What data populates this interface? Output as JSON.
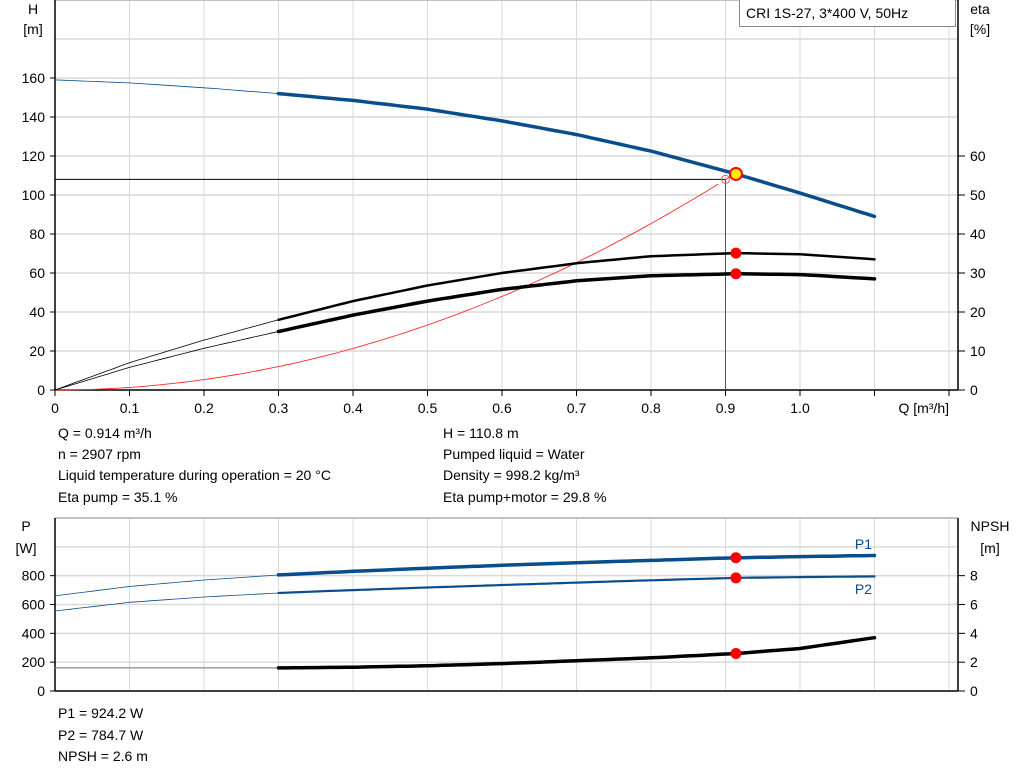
{
  "chart_data": [
    {
      "type": "line",
      "title": "CRI 1S-27, 3*400 V, 50Hz",
      "xlabel": "Q [m³/h]",
      "ylabel_top": "H",
      "ylabel_unit": "[m]",
      "y2label_top": "eta",
      "y2label_unit": "[%]",
      "xlim": [
        0,
        1.2
      ],
      "ylim": [
        0,
        200
      ],
      "y2lim": [
        0,
        100
      ],
      "grid": true,
      "xticks": [
        "0",
        "0.1",
        "0.2",
        "0.3",
        "0.4",
        "0.5",
        "0.6",
        "0.7",
        "0.8",
        "0.9",
        "1.0"
      ],
      "yticks": [
        "0",
        "20",
        "40",
        "60",
        "80",
        "100",
        "120",
        "140",
        "160"
      ],
      "y2ticks": [
        "0",
        "10",
        "20",
        "30",
        "40",
        "50",
        "60"
      ],
      "series": [
        {
          "key": "H",
          "axis": "y",
          "color": "#0a4d8c",
          "x": [
            0,
            0.1,
            0.2,
            0.3,
            0.4,
            0.5,
            0.6,
            0.7,
            0.8,
            0.914,
            1.0,
            1.1
          ],
          "y": [
            159,
            157.5,
            155,
            152,
            148.5,
            144,
            138,
            131,
            122.5,
            110.8,
            101,
            89
          ]
        },
        {
          "key": "eta_pump",
          "axis": "y2",
          "color": "#000000",
          "x": [
            0,
            0.1,
            0.2,
            0.3,
            0.4,
            0.5,
            0.6,
            0.7,
            0.8,
            0.914,
            1.0,
            1.1
          ],
          "y": [
            0,
            7,
            12.8,
            18,
            22.8,
            26.8,
            30,
            32.5,
            34.3,
            35.1,
            34.8,
            33.5
          ]
        },
        {
          "key": "eta_pump_motor",
          "axis": "y2",
          "color": "#000000",
          "x": [
            0,
            0.1,
            0.2,
            0.3,
            0.4,
            0.5,
            0.6,
            0.7,
            0.8,
            0.914,
            1.0,
            1.1
          ],
          "y": [
            0,
            5.8,
            10.7,
            15,
            19.2,
            22.8,
            25.8,
            28,
            29.3,
            29.8,
            29.6,
            28.5
          ]
        },
        {
          "key": "system_curve",
          "axis": "y",
          "color": "#ff2a2a",
          "x": [
            0,
            0.1,
            0.2,
            0.3,
            0.4,
            0.5,
            0.6,
            0.7,
            0.8,
            0.9,
            0.914
          ],
          "y": [
            0,
            1,
            5,
            12,
            21,
            32,
            47,
            64,
            85,
            108,
            110.8
          ]
        }
      ],
      "duty_point": {
        "q": 0.914,
        "h": 110.8,
        "eta_pump": 35.1,
        "eta_pump_motor": 29.8
      },
      "crosshair": {
        "q": 0.9,
        "h": 108
      }
    },
    {
      "type": "line",
      "ylabel_top": "P",
      "ylabel_unit": "[W]",
      "y2label_top": "NPSH",
      "y2label_unit": "[m]",
      "xlim": [
        0,
        1.2
      ],
      "ylim": [
        0,
        1200
      ],
      "y2lim": [
        0,
        12
      ],
      "grid": true,
      "yticks": [
        "0",
        "200",
        "400",
        "600",
        "800"
      ],
      "y2ticks": [
        "0",
        "2",
        "4",
        "6",
        "8"
      ],
      "series": [
        {
          "key": "P1",
          "name": "P1",
          "axis": "y",
          "color": "#0a4d8c",
          "x": [
            0,
            0.1,
            0.2,
            0.3,
            0.4,
            0.5,
            0.6,
            0.7,
            0.8,
            0.914,
            1.0,
            1.1
          ],
          "y": [
            660,
            725,
            770,
            805,
            830,
            852,
            872,
            890,
            906,
            924.2,
            932,
            940
          ]
        },
        {
          "key": "P2",
          "name": "P2",
          "axis": "y",
          "color": "#0a4d8c",
          "x": [
            0,
            0.1,
            0.2,
            0.3,
            0.4,
            0.5,
            0.6,
            0.7,
            0.8,
            0.914,
            1.0,
            1.1
          ],
          "y": [
            555,
            615,
            652,
            680,
            700,
            718,
            735,
            752,
            768,
            784.7,
            790,
            795
          ]
        },
        {
          "key": "NPSH",
          "axis": "y2",
          "color": "#000000",
          "x": [
            0,
            0.1,
            0.2,
            0.3,
            0.4,
            0.5,
            0.6,
            0.7,
            0.8,
            0.914,
            1.0,
            1.1
          ],
          "y": [
            1.6,
            1.6,
            1.6,
            1.6,
            1.65,
            1.75,
            1.9,
            2.1,
            2.3,
            2.6,
            2.95,
            3.7
          ]
        }
      ],
      "duty_point": {
        "q": 0.914,
        "p1": 924.2,
        "p2": 784.7,
        "npsh": 2.6
      }
    }
  ],
  "readout": {
    "left": [
      "Q = 0.914 m³/h",
      "n = 2907 rpm",
      "Liquid temperature during operation = 20 °C",
      "Eta pump = 35.1 %"
    ],
    "right": [
      "H = 110.8 m",
      "Pumped liquid = Water",
      "Density = 998.2 kg/m³",
      "Eta pump+motor = 29.8 %"
    ],
    "bottom": [
      "P1 = 924.2 W",
      "P2 = 784.7 W",
      "NPSH = 2.6 m"
    ]
  }
}
